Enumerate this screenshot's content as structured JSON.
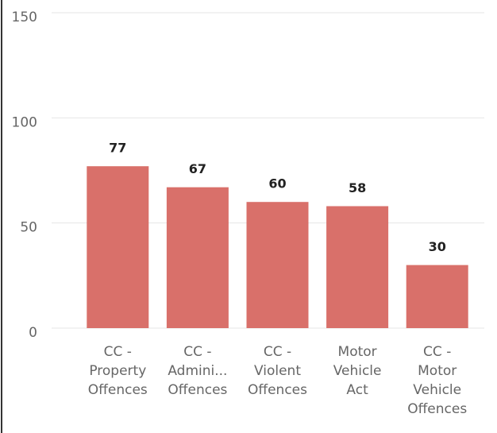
{
  "chart_data": {
    "type": "bar",
    "categories": [
      [
        "CC -",
        "Property",
        "Offences"
      ],
      [
        "CC -",
        "Admini...",
        "Offences"
      ],
      [
        "CC -",
        "Violent",
        "Offences"
      ],
      [
        "Motor",
        "Vehicle",
        "Act"
      ],
      [
        "CC -",
        "Motor",
        "Vehicle",
        "Offences"
      ]
    ],
    "values": [
      77,
      67,
      60,
      58,
      30
    ],
    "color": "#d9706a",
    "ylim": [
      0,
      150
    ],
    "yticks": [
      0,
      50,
      100,
      150
    ],
    "grid": true
  }
}
